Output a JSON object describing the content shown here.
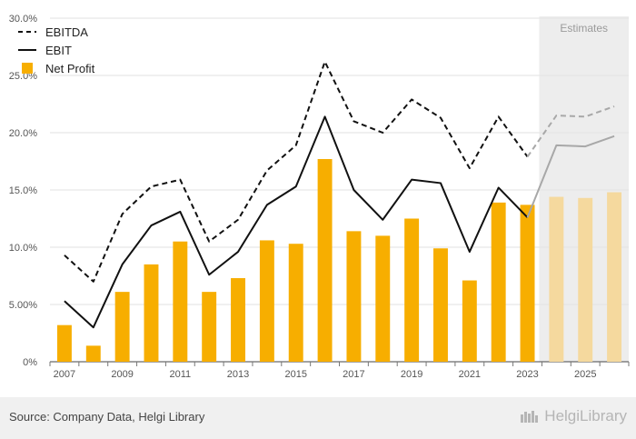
{
  "chart_data": {
    "type": "bar+line",
    "title": "",
    "xlabel": "",
    "ylabel": "",
    "ylim": [
      0,
      30
    ],
    "yticks": [
      0,
      5,
      10,
      15,
      20,
      25,
      30
    ],
    "ytick_labels": [
      "0%",
      "5.00%",
      "10.0%",
      "15.0%",
      "20.0%",
      "25.0%",
      "30.0%"
    ],
    "x": [
      2007,
      2008,
      2009,
      2010,
      2011,
      2012,
      2013,
      2014,
      2015,
      2016,
      2017,
      2018,
      2019,
      2020,
      2021,
      2022,
      2023,
      2024,
      2025,
      2026
    ],
    "xtick_labels": [
      "2007",
      "2009",
      "2011",
      "2013",
      "2015",
      "2017",
      "2019",
      "2021",
      "2023",
      "2025"
    ],
    "estimates_from": 2024,
    "estimates_label": "Estimates",
    "series": [
      {
        "name": "EBITDA",
        "kind": "line",
        "style": "dashed",
        "color": "#111111",
        "values": [
          9.3,
          7.0,
          12.9,
          15.3,
          15.9,
          10.5,
          12.4,
          16.7,
          18.9,
          26.2,
          21.0,
          20.0,
          22.9,
          21.3,
          16.9,
          21.4,
          17.9,
          21.5,
          21.4,
          22.3
        ]
      },
      {
        "name": "EBIT",
        "kind": "line",
        "style": "solid",
        "color": "#111111",
        "values": [
          5.3,
          3.0,
          8.5,
          11.9,
          13.1,
          7.6,
          9.6,
          13.7,
          15.3,
          21.4,
          15.0,
          12.4,
          15.9,
          15.6,
          9.6,
          15.2,
          12.6,
          18.9,
          18.8,
          19.7
        ]
      },
      {
        "name": "Net Profit",
        "kind": "bar",
        "color": "#f7ae00",
        "values": [
          3.2,
          1.4,
          6.1,
          8.5,
          10.5,
          6.1,
          7.3,
          10.6,
          10.3,
          17.7,
          11.4,
          11.0,
          12.5,
          9.9,
          7.1,
          13.9,
          13.7,
          14.4,
          14.3,
          14.8
        ]
      }
    ],
    "legend": [
      {
        "name": "EBITDA",
        "marker": "dashed-line"
      },
      {
        "name": "EBIT",
        "marker": "solid-line"
      },
      {
        "name": "Net Profit",
        "marker": "square"
      }
    ],
    "legend_position": "top-left",
    "grid": true
  },
  "colors": {
    "bar": "#f7ae00",
    "bar_estimate": "#f5d99e",
    "line": "#111111",
    "line_estimate": "#a8a8a8",
    "estimate_band": "#ededed",
    "grid": "#e2e2e2",
    "footer_bg": "#f0f0f0"
  },
  "footer": {
    "source": "Source: Company Data, Helgi Library",
    "brand": "HelgiLibrary",
    "brand_icon": "library-shelf-icon"
  }
}
